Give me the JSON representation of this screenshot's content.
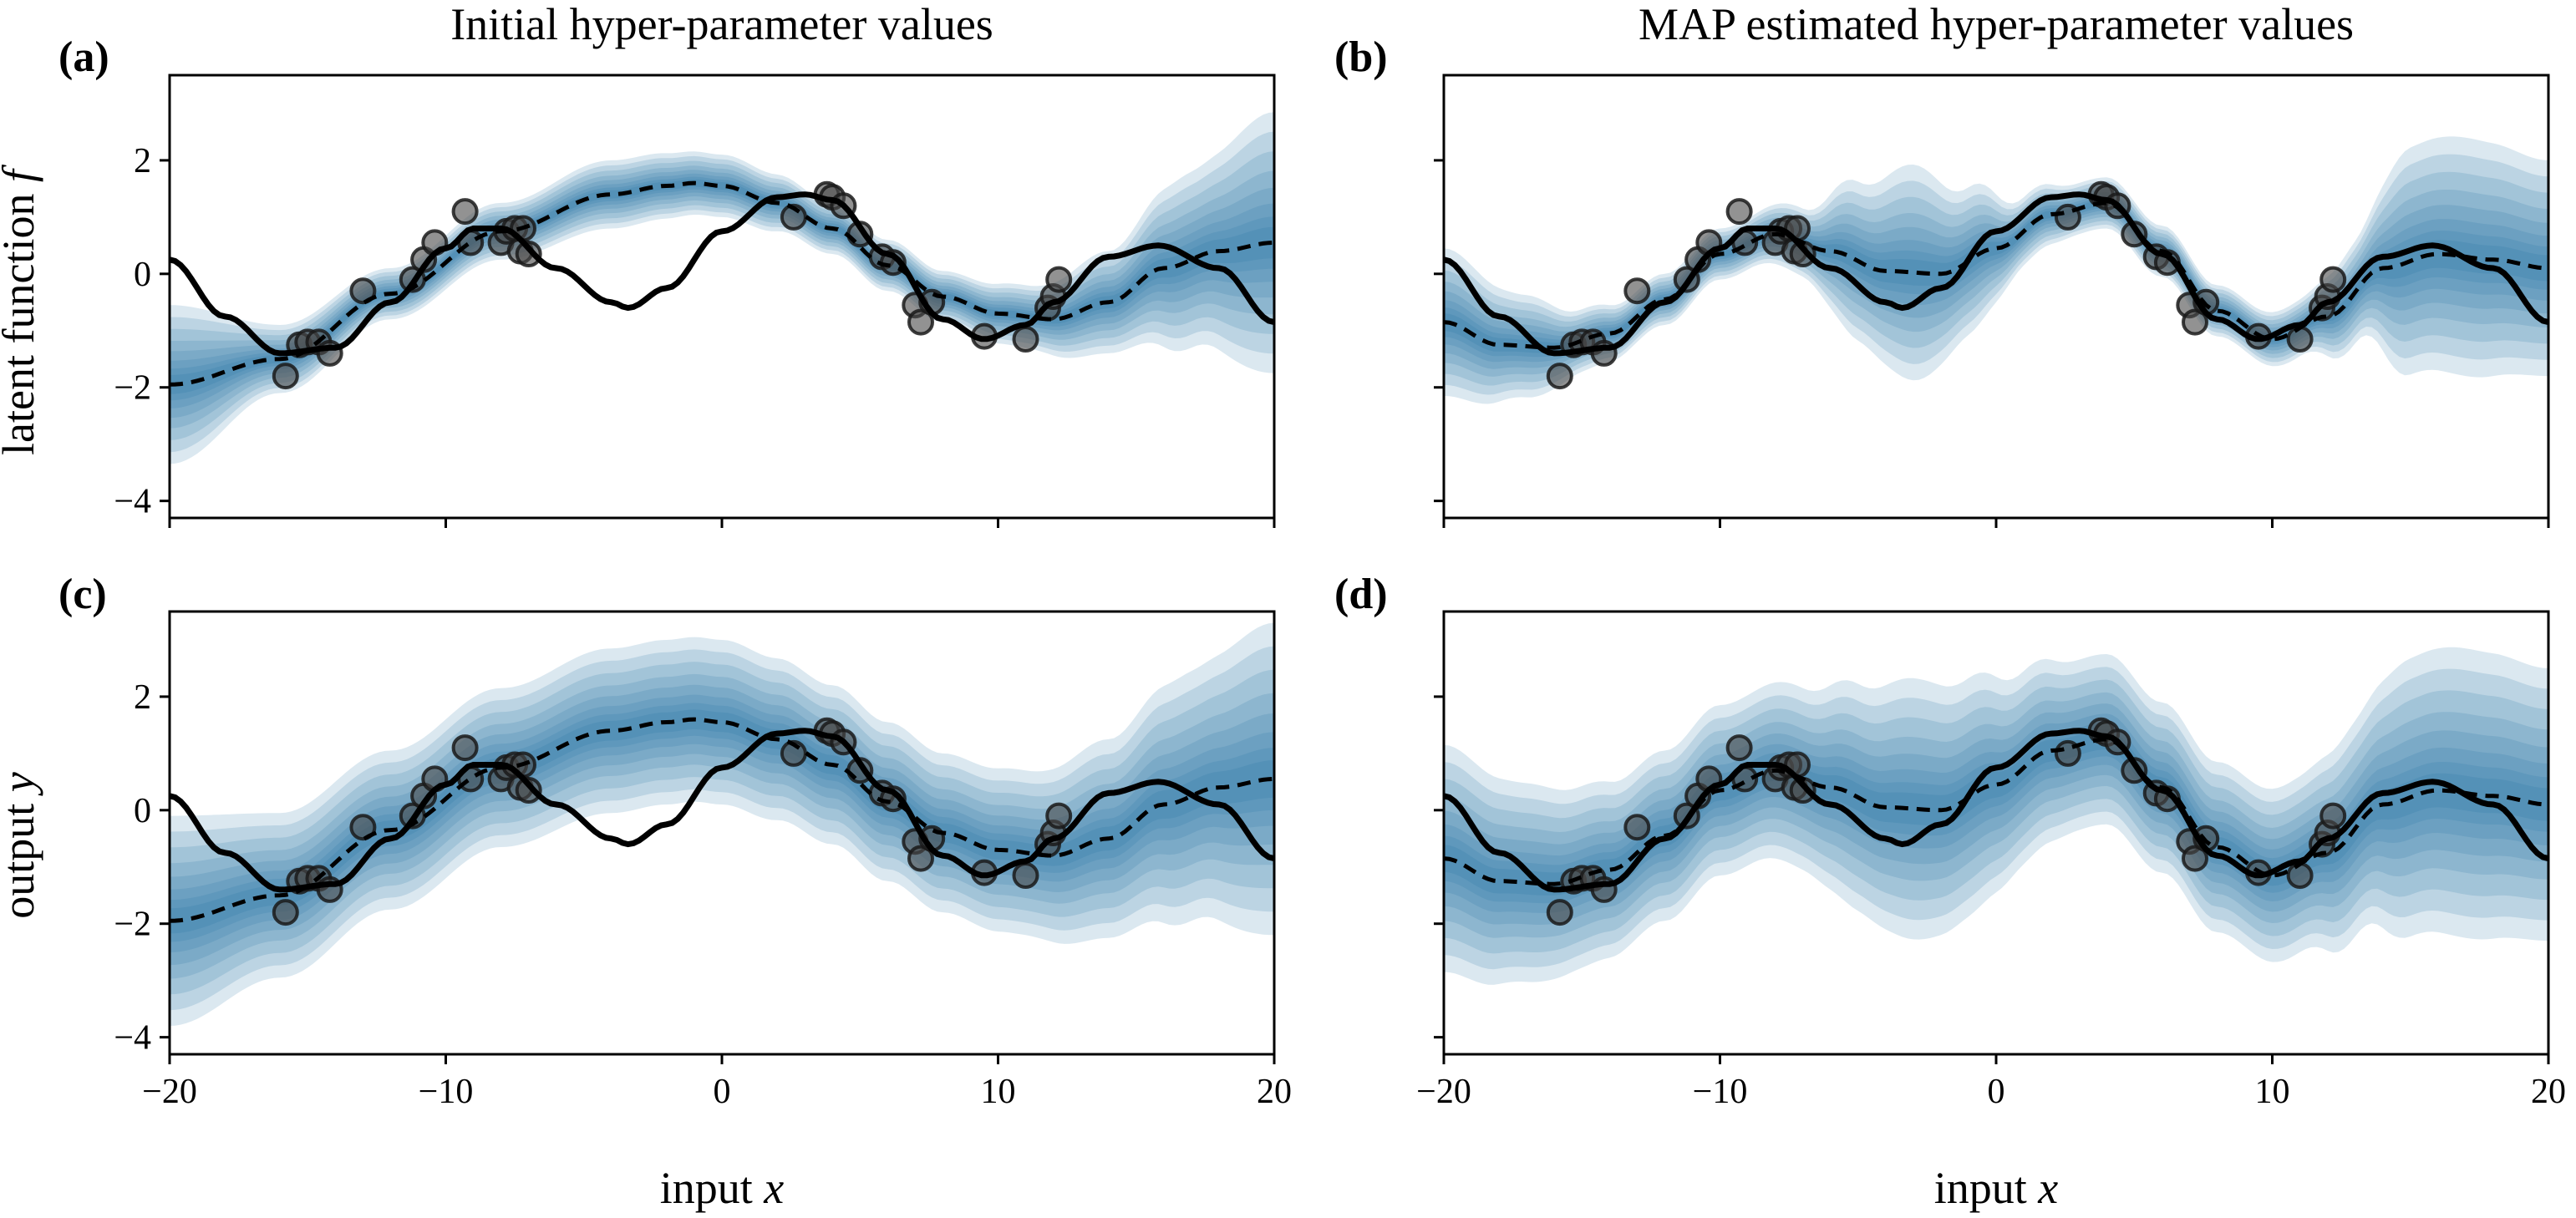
{
  "column_titles": [
    "Initial hyper-parameter values",
    "MAP estimated hyper-parameter values"
  ],
  "xlabel": "input x",
  "xlabel_word": "input",
  "xlabel_var": "x",
  "row_ylabels": [
    {
      "word": "latent function",
      "var": "f"
    },
    {
      "word": "output",
      "var": "y"
    }
  ],
  "colors": {
    "band": "#1f6fa3",
    "line": "#000000",
    "points": "#4a4a4a",
    "background": "#ffffff"
  },
  "chart_data": [
    {
      "type": "line",
      "panel": "(a)",
      "title": "Initial hyper-parameter values",
      "xlabel": "",
      "ylabel": "latent function f",
      "xlim": [
        -20,
        20
      ],
      "ylim": [
        -4.3,
        3.5
      ],
      "xticks": [
        -20,
        -10,
        0,
        10,
        20
      ],
      "yticks": [
        -4,
        -2,
        0,
        2
      ],
      "tick_labels_x_visible": false,
      "series": [
        {
          "role": "true function (solid)",
          "x": [
            -20,
            -18,
            -16,
            -14,
            -12,
            -10,
            -9,
            -8,
            -6,
            -4,
            -3.4,
            -2,
            0,
            2,
            3,
            4,
            6,
            8,
            9.5,
            11,
            12,
            14,
            15.8,
            18,
            20
          ],
          "y": [
            0.25,
            -0.75,
            -1.4,
            -1.3,
            -0.5,
            0.45,
            0.8,
            0.8,
            0.1,
            -0.5,
            -0.6,
            -0.25,
            0.75,
            1.35,
            1.4,
            1.3,
            0.35,
            -0.8,
            -1.15,
            -0.9,
            -0.5,
            0.3,
            0.5,
            0.1,
            -0.85
          ]
        },
        {
          "role": "predictive mean (dashed)",
          "x": [
            -20,
            -16,
            -12,
            -8,
            -4,
            -2,
            -1,
            0,
            2,
            4,
            6,
            8,
            10,
            12,
            14,
            16,
            18,
            20
          ],
          "y": [
            -1.95,
            -1.5,
            -0.35,
            0.75,
            1.4,
            1.55,
            1.6,
            1.55,
            1.25,
            0.8,
            0.15,
            -0.4,
            -0.7,
            -0.8,
            -0.5,
            0.1,
            0.4,
            0.55
          ]
        },
        {
          "role": "uncertainty band half-width",
          "x": [
            -20,
            -16,
            -12,
            -8,
            -4,
            0,
            4,
            8,
            11,
            14,
            17,
            20
          ],
          "y": [
            1.4,
            0.6,
            0.45,
            0.5,
            0.6,
            0.55,
            0.45,
            0.45,
            0.55,
            0.9,
            1.55,
            2.3
          ]
        }
      ],
      "points": [
        [
          -15.8,
          -1.8
        ],
        [
          -15.3,
          -1.25
        ],
        [
          -15.0,
          -1.2
        ],
        [
          -14.6,
          -1.2
        ],
        [
          -14.2,
          -1.4
        ],
        [
          -13.0,
          -0.3
        ],
        [
          -11.2,
          -0.1
        ],
        [
          -10.8,
          0.25
        ],
        [
          -10.4,
          0.55
        ],
        [
          -9.3,
          1.1
        ],
        [
          -9.1,
          0.55
        ],
        [
          -8.0,
          0.55
        ],
        [
          -7.8,
          0.75
        ],
        [
          -7.5,
          0.8
        ],
        [
          -7.2,
          0.8
        ],
        [
          -7.3,
          0.4
        ],
        [
          -7.0,
          0.35
        ],
        [
          2.6,
          1.0
        ],
        [
          3.8,
          1.4
        ],
        [
          4.0,
          1.35
        ],
        [
          4.4,
          1.2
        ],
        [
          5.0,
          0.7
        ],
        [
          5.8,
          0.3
        ],
        [
          6.2,
          0.2
        ],
        [
          7.0,
          -0.55
        ],
        [
          7.2,
          -0.85
        ],
        [
          7.6,
          -0.5
        ],
        [
          9.5,
          -1.1
        ],
        [
          11.0,
          -1.15
        ],
        [
          11.8,
          -0.6
        ],
        [
          12.0,
          -0.4
        ],
        [
          12.2,
          -0.1
        ]
      ]
    },
    {
      "type": "line",
      "panel": "(b)",
      "title": "MAP estimated hyper-parameter values",
      "xlabel": "",
      "ylabel": "",
      "xlim": [
        -20,
        20
      ],
      "ylim": [
        -4.3,
        3.5
      ],
      "xticks": [
        -20,
        -10,
        0,
        10,
        20
      ],
      "yticks": [
        -4,
        -2,
        0,
        2
      ],
      "tick_labels_x_visible": false,
      "tick_labels_y_visible": false,
      "series": [
        {
          "role": "true function (solid)",
          "x": [
            -20,
            -18,
            -16,
            -14,
            -12,
            -10,
            -9,
            -8,
            -6,
            -4,
            -3.4,
            -2,
            0,
            2,
            3,
            4,
            6,
            8,
            9.5,
            11,
            12,
            14,
            15.8,
            18,
            20
          ],
          "y": [
            0.25,
            -0.75,
            -1.4,
            -1.3,
            -0.5,
            0.45,
            0.8,
            0.8,
            0.1,
            -0.5,
            -0.6,
            -0.25,
            0.75,
            1.35,
            1.4,
            1.3,
            0.35,
            -0.8,
            -1.15,
            -0.9,
            -0.5,
            0.3,
            0.5,
            0.1,
            -0.85
          ]
        },
        {
          "role": "predictive mean (dashed)",
          "x": [
            -20,
            -18,
            -16,
            -14,
            -12,
            -10,
            -8,
            -6,
            -4,
            -2,
            0,
            2,
            4,
            6,
            8,
            10,
            12,
            14,
            16,
            18,
            20
          ],
          "y": [
            -0.85,
            -1.25,
            -1.3,
            -1.05,
            -0.45,
            0.35,
            0.7,
            0.4,
            0.05,
            0.0,
            0.45,
            1.05,
            1.25,
            0.4,
            -0.65,
            -1.15,
            -0.75,
            0.1,
            0.35,
            0.25,
            0.1
          ]
        },
        {
          "role": "uncertainty band half-width",
          "x": [
            -20,
            -17,
            -15,
            -13,
            -11,
            -9,
            -7,
            -5,
            -3,
            -1,
            1,
            3,
            5,
            7,
            9,
            11,
            13,
            15,
            17,
            20
          ],
          "y": [
            1.3,
            0.9,
            0.55,
            0.45,
            0.45,
            0.45,
            0.6,
            1.4,
            1.9,
            1.3,
            0.6,
            0.45,
            0.45,
            0.45,
            0.45,
            0.5,
            0.9,
            2.0,
            2.1,
            1.9
          ]
        }
      ],
      "points": [
        [
          -15.8,
          -1.8
        ],
        [
          -15.3,
          -1.25
        ],
        [
          -15.0,
          -1.2
        ],
        [
          -14.6,
          -1.2
        ],
        [
          -14.2,
          -1.4
        ],
        [
          -13.0,
          -0.3
        ],
        [
          -11.2,
          -0.1
        ],
        [
          -10.8,
          0.25
        ],
        [
          -10.4,
          0.55
        ],
        [
          -9.3,
          1.1
        ],
        [
          -9.1,
          0.55
        ],
        [
          -8.0,
          0.55
        ],
        [
          -7.8,
          0.75
        ],
        [
          -7.5,
          0.8
        ],
        [
          -7.2,
          0.8
        ],
        [
          -7.3,
          0.4
        ],
        [
          -7.0,
          0.35
        ],
        [
          2.6,
          1.0
        ],
        [
          3.8,
          1.4
        ],
        [
          4.0,
          1.35
        ],
        [
          4.4,
          1.2
        ],
        [
          5.0,
          0.7
        ],
        [
          5.8,
          0.3
        ],
        [
          6.2,
          0.2
        ],
        [
          7.0,
          -0.55
        ],
        [
          7.2,
          -0.85
        ],
        [
          7.6,
          -0.5
        ],
        [
          9.5,
          -1.1
        ],
        [
          11.0,
          -1.15
        ],
        [
          11.8,
          -0.6
        ],
        [
          12.0,
          -0.4
        ],
        [
          12.2,
          -0.1
        ]
      ]
    },
    {
      "type": "line",
      "panel": "(c)",
      "title": "",
      "xlabel": "input x",
      "ylabel": "output y",
      "xlim": [
        -20,
        20
      ],
      "ylim": [
        -4.3,
        3.5
      ],
      "xticks": [
        -20,
        -10,
        0,
        10,
        20
      ],
      "yticks": [
        -4,
        -2,
        0,
        2
      ],
      "series": [
        {
          "role": "true function (solid)",
          "x": [
            -20,
            -18,
            -16,
            -14,
            -12,
            -10,
            -9,
            -8,
            -6,
            -4,
            -3.4,
            -2,
            0,
            2,
            3,
            4,
            6,
            8,
            9.5,
            11,
            12,
            14,
            15.8,
            18,
            20
          ],
          "y": [
            0.25,
            -0.75,
            -1.4,
            -1.3,
            -0.5,
            0.45,
            0.8,
            0.8,
            0.1,
            -0.5,
            -0.6,
            -0.25,
            0.75,
            1.35,
            1.4,
            1.3,
            0.35,
            -0.8,
            -1.15,
            -0.9,
            -0.5,
            0.3,
            0.5,
            0.1,
            -0.85
          ]
        },
        {
          "role": "predictive mean (dashed)",
          "x": [
            -20,
            -16,
            -12,
            -8,
            -4,
            -2,
            -1,
            0,
            2,
            4,
            6,
            8,
            10,
            12,
            14,
            16,
            18,
            20
          ],
          "y": [
            -1.95,
            -1.5,
            -0.35,
            0.75,
            1.4,
            1.55,
            1.6,
            1.55,
            1.25,
            0.8,
            0.15,
            -0.4,
            -0.7,
            -0.8,
            -0.5,
            0.1,
            0.4,
            0.55
          ]
        },
        {
          "role": "uncertainty band half-width",
          "x": [
            -20,
            -16,
            -12,
            -8,
            -4,
            0,
            4,
            8,
            11,
            14,
            17,
            20
          ],
          "y": [
            1.85,
            1.45,
            1.4,
            1.4,
            1.45,
            1.45,
            1.4,
            1.4,
            1.45,
            1.75,
            2.2,
            2.75
          ]
        }
      ],
      "points": [
        [
          -15.8,
          -1.8
        ],
        [
          -15.3,
          -1.25
        ],
        [
          -15.0,
          -1.2
        ],
        [
          -14.6,
          -1.2
        ],
        [
          -14.2,
          -1.4
        ],
        [
          -13.0,
          -0.3
        ],
        [
          -11.2,
          -0.1
        ],
        [
          -10.8,
          0.25
        ],
        [
          -10.4,
          0.55
        ],
        [
          -9.3,
          1.1
        ],
        [
          -9.1,
          0.55
        ],
        [
          -8.0,
          0.55
        ],
        [
          -7.8,
          0.75
        ],
        [
          -7.5,
          0.8
        ],
        [
          -7.2,
          0.8
        ],
        [
          -7.3,
          0.4
        ],
        [
          -7.0,
          0.35
        ],
        [
          2.6,
          1.0
        ],
        [
          3.8,
          1.4
        ],
        [
          4.0,
          1.35
        ],
        [
          4.4,
          1.2
        ],
        [
          5.0,
          0.7
        ],
        [
          5.8,
          0.3
        ],
        [
          6.2,
          0.2
        ],
        [
          7.0,
          -0.55
        ],
        [
          7.2,
          -0.85
        ],
        [
          7.6,
          -0.5
        ],
        [
          9.5,
          -1.1
        ],
        [
          11.0,
          -1.15
        ],
        [
          11.8,
          -0.6
        ],
        [
          12.0,
          -0.4
        ],
        [
          12.2,
          -0.1
        ]
      ]
    },
    {
      "type": "line",
      "panel": "(d)",
      "title": "",
      "xlabel": "input x",
      "ylabel": "",
      "xlim": [
        -20,
        20
      ],
      "ylim": [
        -4.3,
        3.5
      ],
      "xticks": [
        -20,
        -10,
        0,
        10,
        20
      ],
      "yticks": [
        -4,
        -2,
        0,
        2
      ],
      "tick_labels_y_visible": false,
      "series": [
        {
          "role": "true function (solid)",
          "x": [
            -20,
            -18,
            -16,
            -14,
            -12,
            -10,
            -9,
            -8,
            -6,
            -4,
            -3.4,
            -2,
            0,
            2,
            3,
            4,
            6,
            8,
            9.5,
            11,
            12,
            14,
            15.8,
            18,
            20
          ],
          "y": [
            0.25,
            -0.75,
            -1.4,
            -1.3,
            -0.5,
            0.45,
            0.8,
            0.8,
            0.1,
            -0.5,
            -0.6,
            -0.25,
            0.75,
            1.35,
            1.4,
            1.3,
            0.35,
            -0.8,
            -1.15,
            -0.9,
            -0.5,
            0.3,
            0.5,
            0.1,
            -0.85
          ]
        },
        {
          "role": "predictive mean (dashed)",
          "x": [
            -20,
            -18,
            -16,
            -14,
            -12,
            -10,
            -8,
            -6,
            -4,
            -2,
            0,
            2,
            4,
            6,
            8,
            10,
            12,
            14,
            16,
            18,
            20
          ],
          "y": [
            -0.85,
            -1.25,
            -1.3,
            -1.05,
            -0.45,
            0.35,
            0.7,
            0.4,
            0.05,
            0.0,
            0.45,
            1.05,
            1.25,
            0.4,
            -0.65,
            -1.15,
            -0.75,
            0.1,
            0.35,
            0.25,
            0.1
          ]
        },
        {
          "role": "uncertainty band half-width",
          "x": [
            -20,
            -17,
            -15,
            -13,
            -11,
            -9,
            -7,
            -5,
            -3,
            -1,
            1,
            3,
            5,
            7,
            9,
            11,
            13,
            15,
            17,
            20
          ],
          "y": [
            2.0,
            1.75,
            1.6,
            1.5,
            1.5,
            1.5,
            1.6,
            2.0,
            2.3,
            2.1,
            1.7,
            1.5,
            1.5,
            1.5,
            1.5,
            1.55,
            1.9,
            2.45,
            2.55,
            2.4
          ]
        }
      ],
      "points": [
        [
          -15.8,
          -1.8
        ],
        [
          -15.3,
          -1.25
        ],
        [
          -15.0,
          -1.2
        ],
        [
          -14.6,
          -1.2
        ],
        [
          -14.2,
          -1.4
        ],
        [
          -13.0,
          -0.3
        ],
        [
          -11.2,
          -0.1
        ],
        [
          -10.8,
          0.25
        ],
        [
          -10.4,
          0.55
        ],
        [
          -9.3,
          1.1
        ],
        [
          -9.1,
          0.55
        ],
        [
          -8.0,
          0.55
        ],
        [
          -7.8,
          0.75
        ],
        [
          -7.5,
          0.8
        ],
        [
          -7.2,
          0.8
        ],
        [
          -7.3,
          0.4
        ],
        [
          -7.0,
          0.35
        ],
        [
          2.6,
          1.0
        ],
        [
          3.8,
          1.4
        ],
        [
          4.0,
          1.35
        ],
        [
          4.4,
          1.2
        ],
        [
          5.0,
          0.7
        ],
        [
          5.8,
          0.3
        ],
        [
          6.2,
          0.2
        ],
        [
          7.0,
          -0.55
        ],
        [
          7.2,
          -0.85
        ],
        [
          7.6,
          -0.5
        ],
        [
          9.5,
          -1.1
        ],
        [
          11.0,
          -1.15
        ],
        [
          11.8,
          -0.6
        ],
        [
          12.0,
          -0.4
        ],
        [
          12.2,
          -0.1
        ]
      ]
    }
  ]
}
